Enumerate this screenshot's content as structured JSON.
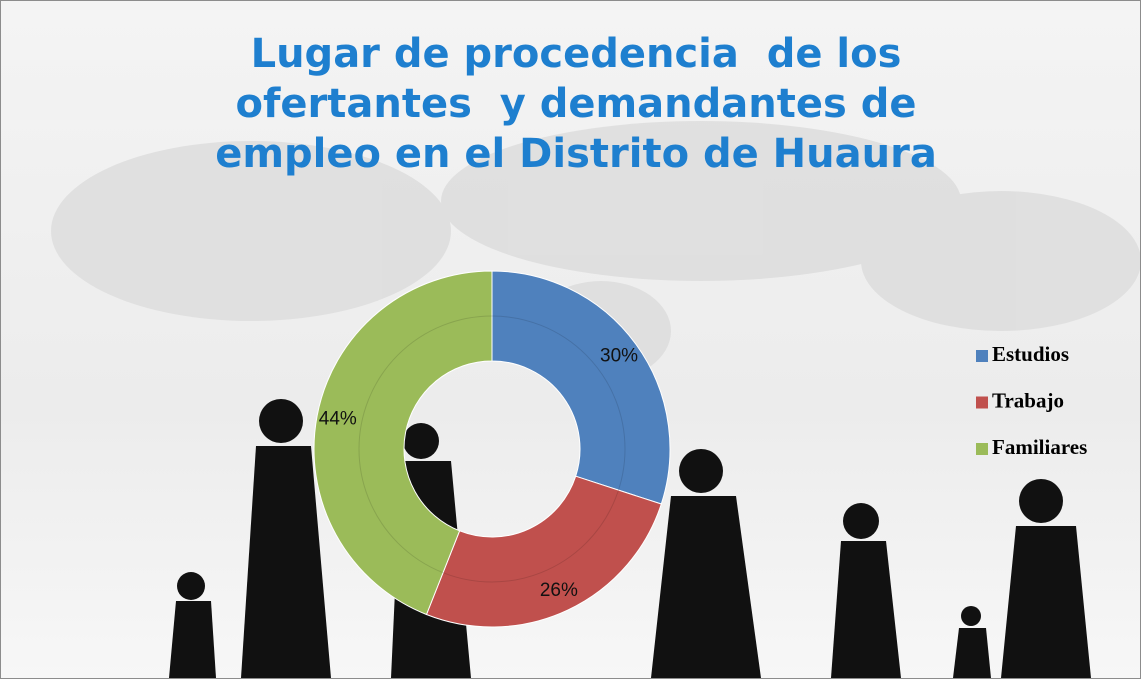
{
  "chart_data": {
    "type": "donut",
    "title": "Lugar de procedencia  de los ofertantes  y demandantes de empleo en el Distrito de Huaura",
    "categories": [
      "Estudios",
      "Trabajo",
      "Familiares"
    ],
    "values": [
      30,
      26,
      44
    ],
    "value_labels": [
      "30%",
      "26%",
      "44%"
    ],
    "colors": [
      "#4f81bd",
      "#c0504d",
      "#9bbb59"
    ],
    "legend": "right"
  }
}
